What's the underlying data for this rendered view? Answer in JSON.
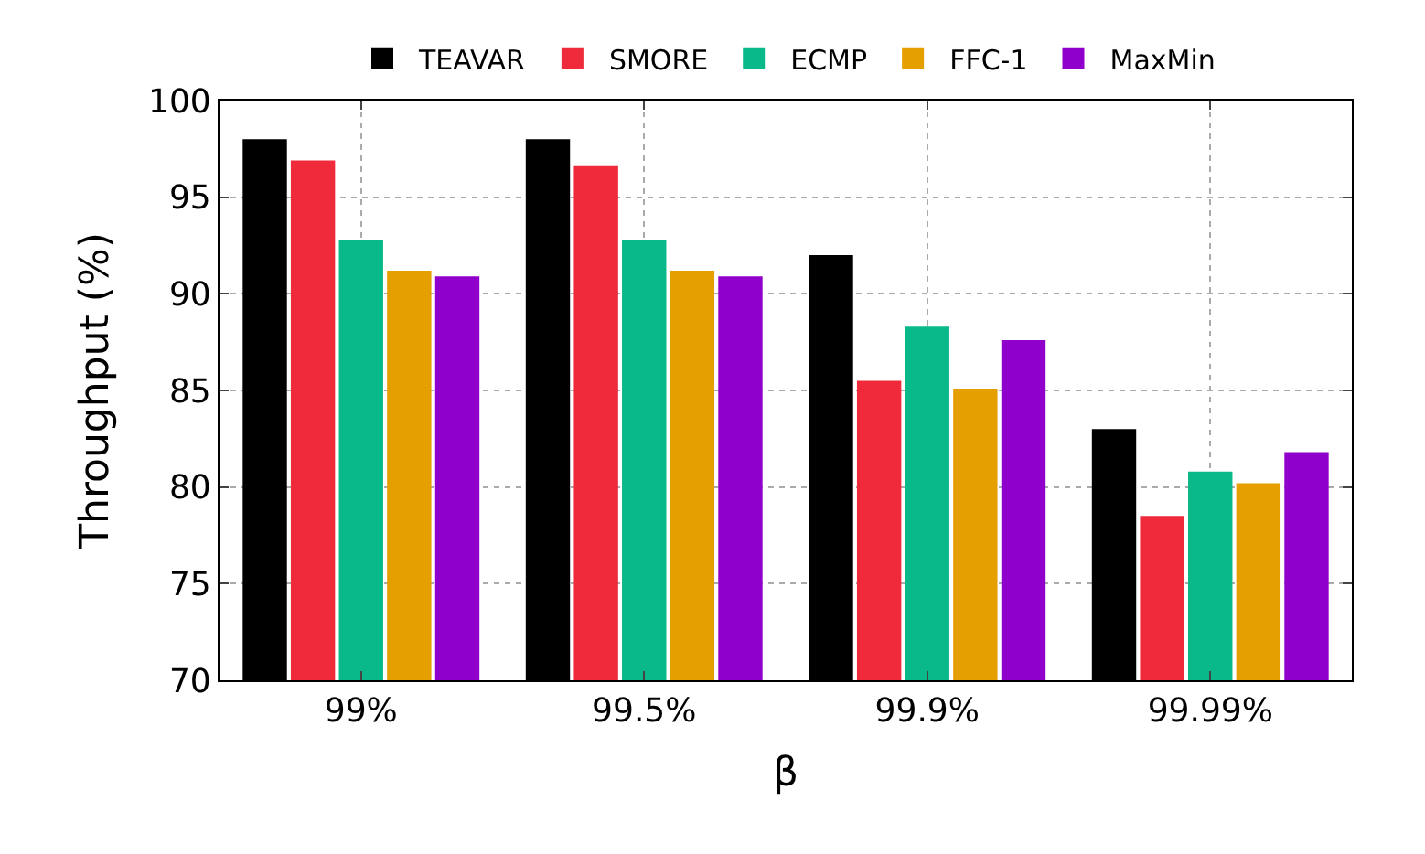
{
  "chart_data": {
    "type": "bar",
    "xlabel": "β",
    "ylabel": "Throughput (%)",
    "categories": [
      "99%",
      "99.5%",
      "99.9%",
      "99.99%"
    ],
    "series": [
      {
        "name": "TEAVAR",
        "color": "#000000",
        "values": [
          98.0,
          98.0,
          92.0,
          83.0
        ]
      },
      {
        "name": "SMORE",
        "color": "#ee2a3b",
        "values": [
          96.9,
          96.6,
          85.5,
          78.5
        ]
      },
      {
        "name": "ECMP",
        "color": "#09b98a",
        "values": [
          92.8,
          92.8,
          88.3,
          80.8
        ]
      },
      {
        "name": "FFC-1",
        "color": "#e69f00",
        "values": [
          91.2,
          91.2,
          85.1,
          80.2
        ]
      },
      {
        "name": "MaxMin",
        "color": "#9000cc",
        "values": [
          90.9,
          90.9,
          87.6,
          81.8
        ]
      }
    ],
    "ylim": [
      70,
      100
    ],
    "yticks": [
      70,
      75,
      80,
      85,
      90,
      95,
      100
    ],
    "grid": true,
    "legend": "top"
  }
}
